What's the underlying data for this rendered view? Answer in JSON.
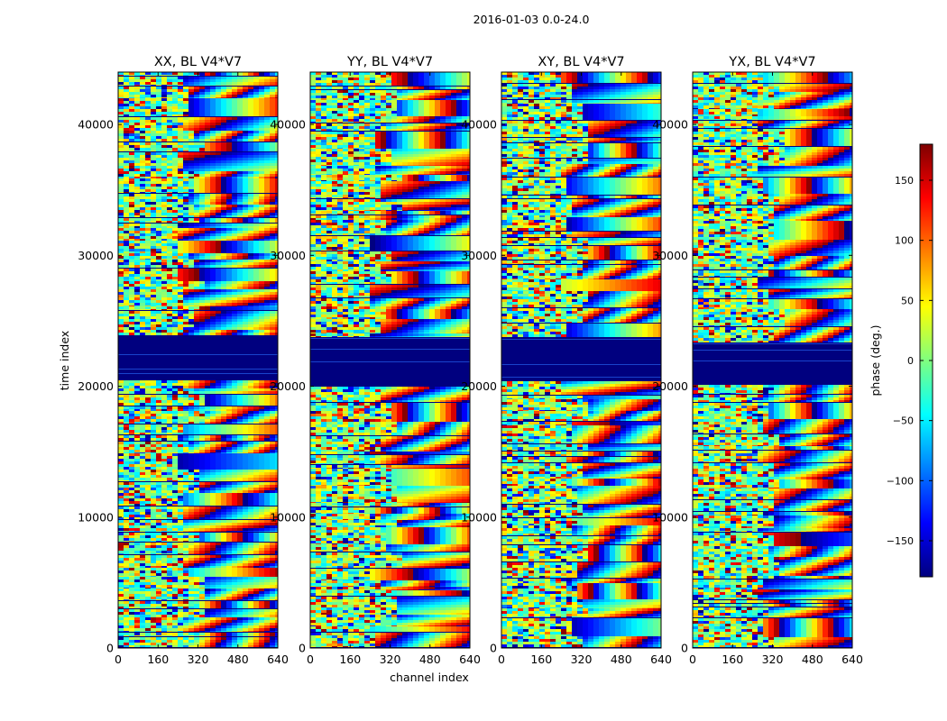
{
  "figure": {
    "suptitle": "2016-01-03 0.0-24.0"
  },
  "chart_data": {
    "type": "heatmap",
    "title": "2016-01-03 0.0-24.0",
    "xlabel": "channel index",
    "ylabel": "time index",
    "xlim": [
      0,
      640
    ],
    "ylim": [
      0,
      44000
    ],
    "xticks": [
      0,
      160,
      320,
      480,
      640
    ],
    "yticks": [
      0,
      10000,
      20000,
      30000,
      40000
    ],
    "panels": [
      {
        "title": "XX, BL V4*V7"
      },
      {
        "title": "YY, BL V4*V7"
      },
      {
        "title": "XY, BL V4*V7"
      },
      {
        "title": "YX, BL V4*V7"
      }
    ],
    "flagged_time_ranges": [
      [
        20200,
        23800
      ]
    ],
    "colorbar": {
      "label": "phase (deg.)",
      "range": [
        -180,
        180
      ],
      "ticks": [
        -150,
        -100,
        -50,
        0,
        50,
        100,
        150
      ],
      "tick_labels": [
        "−150",
        "−100",
        "−50",
        "0",
        "50",
        "100",
        "150"
      ],
      "colormap": "jet",
      "colors": [
        "#00007f",
        "#0000ff",
        "#007fff",
        "#00ffff",
        "#7fff7f",
        "#ffff00",
        "#ff7f00",
        "#ff0000",
        "#7f0000"
      ]
    }
  }
}
